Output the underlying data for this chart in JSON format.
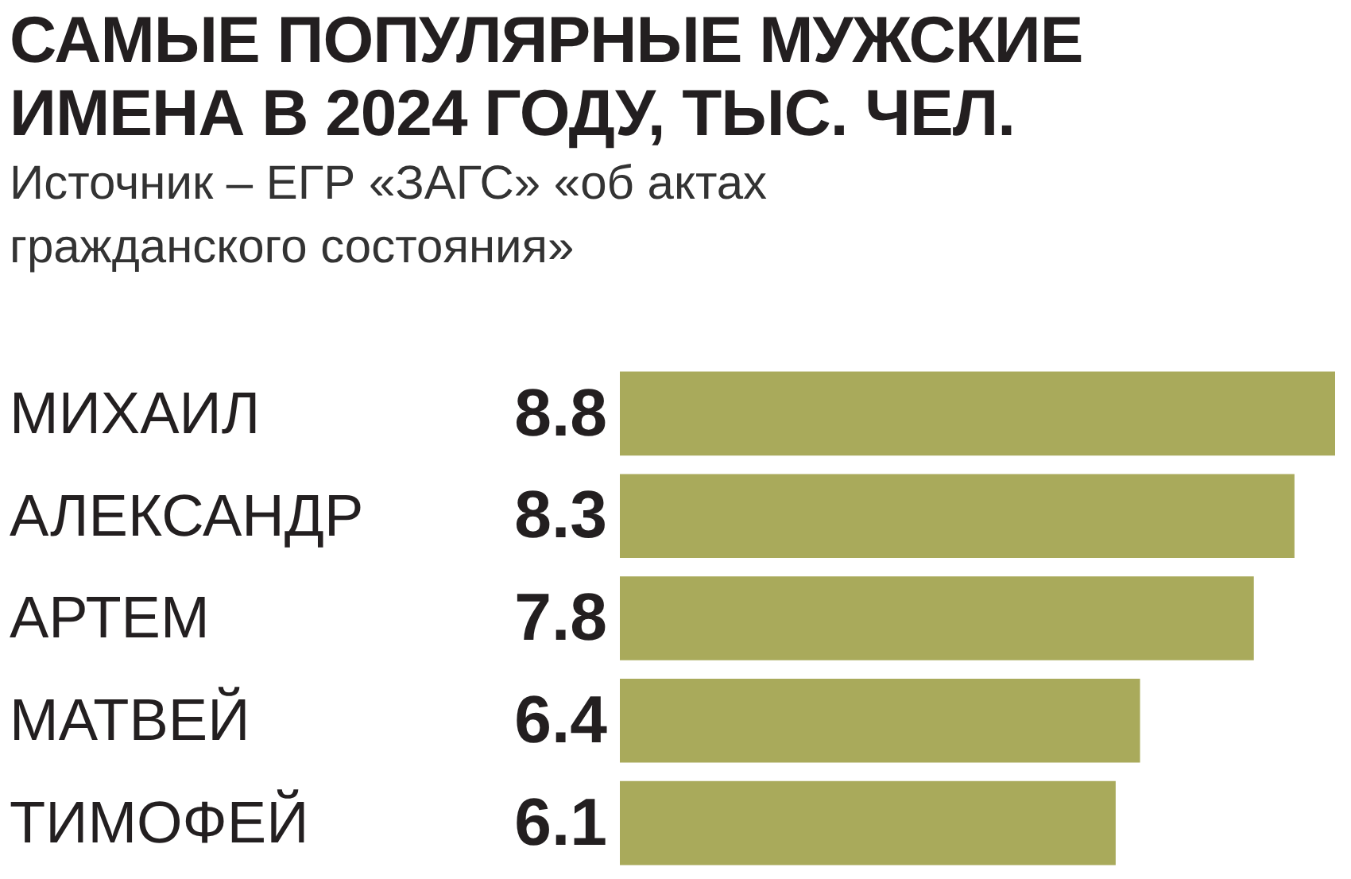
{
  "chart_data": {
    "type": "bar",
    "orientation": "horizontal",
    "title": "САМЫЕ ПОПУЛЯРНЫЕ МУЖСКИЕ ИМЕНА В 2024 ГОДУ, ТЫС. ЧЕЛ.",
    "subtitle": "Источник – ЕГР «ЗАГС» «об актах гражданского состояния»",
    "categories": [
      "МИХАИЛ",
      "АЛЕКСАНДР",
      "АРТЕМ",
      "МАТВЕЙ",
      "ТИМОФЕЙ"
    ],
    "values": [
      8.8,
      8.3,
      7.8,
      6.4,
      6.1
    ],
    "color": "#a9aa5b",
    "data_labels": true,
    "grid": false,
    "legend": false,
    "tick_labels": "y"
  }
}
